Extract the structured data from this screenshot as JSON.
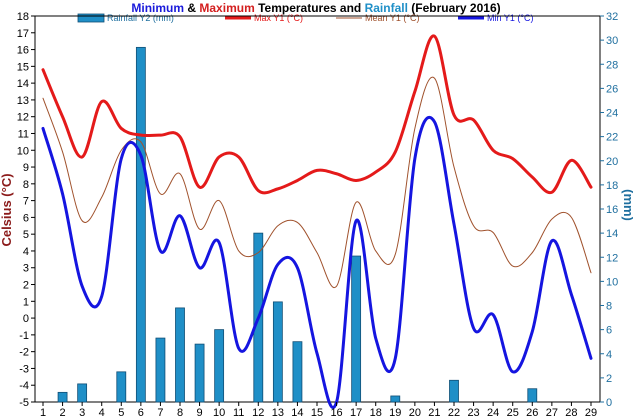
{
  "chart_data": {
    "type": "bar+line",
    "title_parts": [
      {
        "text": "Minimum",
        "color": "#1a1adb"
      },
      {
        "text": " & ",
        "color": "#000000"
      },
      {
        "text": "Maximum",
        "color": "#d42020"
      },
      {
        "text": " Temperatures and ",
        "color": "#000000"
      },
      {
        "text": "Rainfall",
        "color": "#1f8fc7"
      },
      {
        "text": " (February 2016)",
        "color": "#000000"
      }
    ],
    "ylabel_left": "Celsius (°C)",
    "ylabel_right": "(mm)",
    "x": [
      1,
      2,
      3,
      4,
      5,
      6,
      7,
      8,
      9,
      10,
      11,
      12,
      13,
      14,
      15,
      16,
      17,
      18,
      19,
      20,
      21,
      22,
      23,
      24,
      25,
      26,
      27,
      28,
      29
    ],
    "ylim_left": [
      -5,
      18
    ],
    "yticks_left": [
      -5,
      -4,
      -3,
      -2,
      -1,
      0,
      1,
      2,
      3,
      4,
      5,
      6,
      7,
      8,
      9,
      10,
      11,
      12,
      13,
      14,
      15,
      16,
      17,
      18
    ],
    "ylim_right": [
      0,
      32
    ],
    "yticks_right": [
      0,
      2,
      4,
      6,
      8,
      10,
      12,
      14,
      16,
      18,
      20,
      22,
      24,
      26,
      28,
      30,
      32
    ],
    "series": [
      {
        "name": "Rainfall Y2 (mm)",
        "kind": "bar",
        "axis": "right",
        "color": "#1f8fc7",
        "values": [
          0,
          0.8,
          1.5,
          0,
          2.5,
          29.4,
          5.3,
          7.8,
          4.8,
          6.0,
          0,
          14.0,
          8.3,
          5.0,
          0,
          0,
          12.1,
          0,
          0.5,
          0,
          0,
          1.8,
          0,
          0,
          0,
          1.1,
          0,
          0,
          0
        ]
      },
      {
        "name": "Max Y1 (°C)",
        "kind": "line",
        "axis": "left",
        "color": "#e41a1a",
        "values": [
          14.8,
          12.0,
          9.6,
          12.9,
          11.3,
          10.9,
          10.9,
          10.8,
          7.8,
          9.6,
          9.6,
          7.6,
          7.7,
          8.2,
          8.8,
          8.6,
          8.2,
          8.7,
          9.9,
          13.5,
          16.8,
          12.1,
          11.8,
          10.0,
          9.5,
          8.4,
          7.5,
          9.4,
          7.8
        ]
      },
      {
        "name": "Mean Y1 (°C)",
        "kind": "line",
        "axis": "left",
        "color": "#a0522d",
        "values": [
          13.1,
          9.9,
          5.8,
          7.2,
          10.0,
          10.5,
          7.4,
          8.6,
          5.3,
          7.0,
          4.0,
          3.9,
          5.5,
          5.7,
          3.9,
          1.9,
          6.9,
          4.0,
          3.8,
          11.3,
          14.3,
          9.0,
          5.5,
          5.1,
          3.1,
          3.9,
          5.9,
          6.0,
          2.7
        ]
      },
      {
        "name": "Min Y1 (°C)",
        "kind": "line",
        "axis": "left",
        "color": "#1515e0",
        "values": [
          11.3,
          7.4,
          1.9,
          1.3,
          9.5,
          9.7,
          4.0,
          6.1,
          3.0,
          4.5,
          -1.8,
          0.0,
          3.2,
          3.0,
          -2.1,
          -5.0,
          5.8,
          -1.2,
          -2.4,
          9.5,
          11.7,
          5.6,
          -0.6,
          0.2,
          -3.2,
          -0.8,
          4.6,
          1.4,
          -2.4
        ]
      }
    ]
  }
}
